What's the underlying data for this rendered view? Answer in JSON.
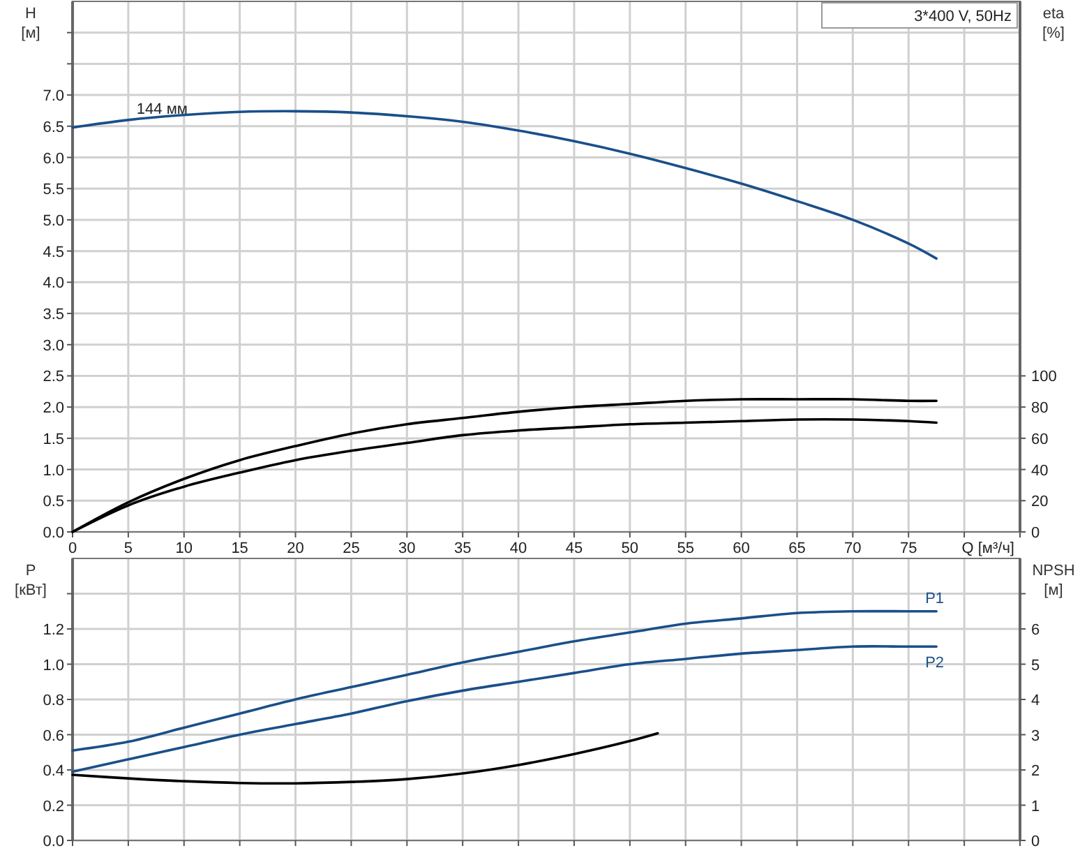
{
  "chart_data": [
    {
      "type": "line",
      "title": "3*400 V, 50Hz",
      "xlabel": "Q [м³/ч]",
      "ylabel": "H [м]",
      "y2label": "eta [%]",
      "annotations": [
        {
          "text": "144 мм",
          "x": 7,
          "y": 6.65
        }
      ],
      "xlim": [
        0,
        85
      ],
      "xticks": [
        0,
        5,
        10,
        15,
        20,
        25,
        30,
        35,
        40,
        45,
        50,
        55,
        60,
        65,
        70,
        75,
        {
          "value": 80,
          "label": null
        },
        {
          "value": 85,
          "label": null
        }
      ],
      "ylim": [
        0,
        8.5
      ],
      "yticks": [
        {
          "value": 0,
          "label": "0.0"
        },
        {
          "value": 0.5,
          "label": "0.5"
        },
        {
          "value": 1,
          "label": "1.0"
        },
        {
          "value": 1.5,
          "label": "1.5"
        },
        {
          "value": 2,
          "label": "2.0"
        },
        {
          "value": 2.5,
          "label": "2.5"
        },
        {
          "value": 3,
          "label": "3.0"
        },
        {
          "value": 3.5,
          "label": "3.5"
        },
        {
          "value": 4,
          "label": "4.0"
        },
        {
          "value": 4.5,
          "label": "4.5"
        },
        {
          "value": 5,
          "label": "5.0"
        },
        {
          "value": 5.5,
          "label": "5.5"
        },
        {
          "value": 6,
          "label": "6.0"
        },
        {
          "value": 6.5,
          "label": "6.5"
        },
        {
          "value": 7,
          "label": "7.0"
        },
        {
          "value": 7.5,
          "label": null
        },
        {
          "value": 8,
          "label": null
        }
      ],
      "y2lim": [
        0,
        340
      ],
      "y2ticks": [
        0,
        20,
        40,
        60,
        80,
        100
      ],
      "grid": true,
      "marker": "none",
      "line_style": "solid",
      "series": [
        {
          "color": "#1a4f8a",
          "x": [
            0,
            5,
            10,
            15,
            20,
            25,
            30,
            35,
            40,
            45,
            50,
            55,
            60,
            65,
            70,
            75,
            77.5
          ],
          "values": [
            6.48,
            6.6,
            6.68,
            6.73,
            6.74,
            6.72,
            6.66,
            6.57,
            6.43,
            6.26,
            6.06,
            5.83,
            5.58,
            5.3,
            5.0,
            4.62,
            4.38
          ]
        },
        {
          "color": "#000000",
          "axis": "y2",
          "x": [
            0,
            5,
            10,
            15,
            20,
            25,
            30,
            35,
            40,
            45,
            50,
            55,
            60,
            65,
            70,
            75,
            77.5
          ],
          "values": [
            0,
            19,
            34,
            46,
            55,
            63,
            69,
            73,
            77,
            80,
            82,
            84,
            85,
            85,
            85,
            84,
            84
          ]
        },
        {
          "color": "#000000",
          "axis": "y2",
          "x": [
            0,
            5,
            10,
            15,
            20,
            25,
            30,
            35,
            40,
            45,
            50,
            55,
            60,
            65,
            70,
            75,
            77.5
          ],
          "values": [
            0,
            17,
            29,
            38,
            46,
            52,
            57,
            62,
            65,
            67,
            69,
            70,
            71,
            72,
            72,
            71,
            70
          ]
        }
      ]
    },
    {
      "type": "line",
      "ylabel": "P [кВт]",
      "y2label": "NPSH [м]",
      "tick_labels": "y",
      "xlim": [
        0,
        85
      ],
      "xticks": [
        0,
        5,
        10,
        15,
        20,
        25,
        30,
        35,
        40,
        45,
        50,
        55,
        60,
        65,
        70,
        75,
        80,
        85
      ],
      "ylim": [
        0,
        1.6
      ],
      "yticks": [
        {
          "value": 0,
          "label": "0.0"
        },
        {
          "value": 0.2,
          "label": "0.2"
        },
        {
          "value": 0.4,
          "label": "0.4"
        },
        {
          "value": 0.6,
          "label": "0.6"
        },
        {
          "value": 0.8,
          "label": "0.8"
        },
        {
          "value": 1,
          "label": "1.0"
        },
        {
          "value": 1.2,
          "label": "1.2"
        },
        {
          "value": 1.4,
          "label": null
        }
      ],
      "y2lim": [
        0,
        8
      ],
      "y2ticks": [
        0,
        1,
        2,
        3,
        4,
        5,
        6,
        {
          "value": 7,
          "label": null
        }
      ],
      "grid": true,
      "marker": "none",
      "line_style": "solid",
      "series": [
        {
          "name": "P1",
          "color": "#1a4f8a",
          "x": [
            0,
            5,
            10,
            15,
            20,
            25,
            30,
            35,
            40,
            45,
            50,
            55,
            60,
            65,
            70,
            75,
            77.5
          ],
          "values": [
            0.51,
            0.56,
            0.64,
            0.72,
            0.8,
            0.87,
            0.94,
            1.01,
            1.07,
            1.13,
            1.18,
            1.23,
            1.26,
            1.29,
            1.3,
            1.3,
            1.3
          ]
        },
        {
          "name": "P2",
          "color": "#1a4f8a",
          "x": [
            0,
            5,
            10,
            15,
            20,
            25,
            30,
            35,
            40,
            45,
            50,
            55,
            60,
            65,
            70,
            75,
            77.5
          ],
          "values": [
            0.39,
            0.46,
            0.53,
            0.6,
            0.66,
            0.72,
            0.79,
            0.85,
            0.9,
            0.95,
            1.0,
            1.03,
            1.06,
            1.08,
            1.1,
            1.1,
            1.1
          ]
        },
        {
          "color": "#000000",
          "axis": "y2",
          "x": [
            0,
            5,
            10,
            15,
            20,
            25,
            30,
            35,
            40,
            45,
            50,
            52.5
          ],
          "values": [
            1.86,
            1.76,
            1.68,
            1.63,
            1.62,
            1.66,
            1.74,
            1.9,
            2.14,
            2.45,
            2.82,
            3.04
          ]
        }
      ]
    }
  ]
}
